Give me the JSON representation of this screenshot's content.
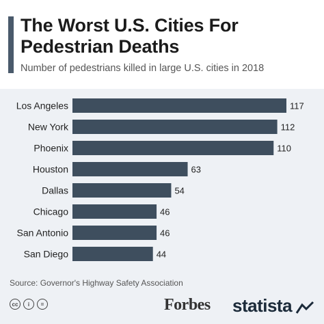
{
  "header": {
    "title": "The Worst U.S. Cities For Pedestrian Deaths",
    "subtitle": "Number of pedestrians killed in large U.S. cities in 2018"
  },
  "footer": {
    "source": "Source: Governor's Highway Safety Association",
    "partner_logo": "Forbes",
    "brand_logo": "statista",
    "license_icons": [
      "cc-icon",
      "person-icon",
      "equals-icon"
    ]
  },
  "colors": {
    "bar": "#3e4e5e",
    "panel": "#eef1f5",
    "accent": "#4a5a6b"
  },
  "chart_data": {
    "type": "bar",
    "orientation": "horizontal",
    "categories": [
      "Los Angeles",
      "New York",
      "Phoenix",
      "Houston",
      "Dallas",
      "Chicago",
      "San Antonio",
      "San Diego"
    ],
    "values": [
      117,
      112,
      110,
      63,
      54,
      46,
      46,
      44
    ],
    "data_labels": [
      "117",
      "112",
      "110",
      "63",
      "54",
      "46",
      "46",
      "44"
    ],
    "xlim": [
      0,
      117
    ],
    "grid": false,
    "legend": "none"
  }
}
